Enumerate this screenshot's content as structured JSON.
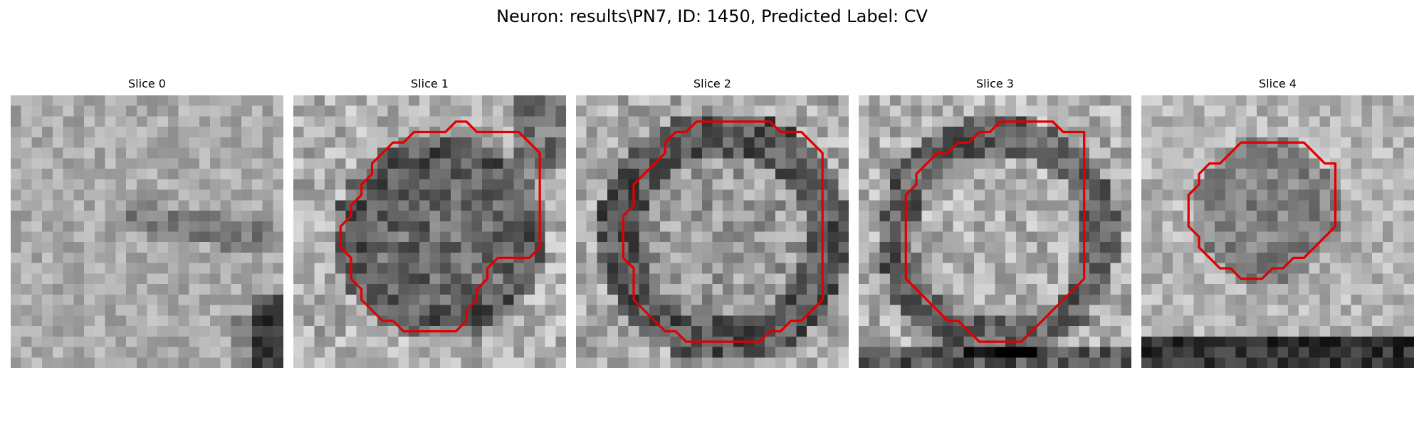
{
  "figure": {
    "title": "Neuron: results\\PN7, ID: 1450, Predicted Label: CV"
  },
  "panels": [
    {
      "title": "Slice 0",
      "contour": []
    },
    {
      "title": "Slice 1",
      "contour": [
        [
          13,
          3
        ],
        [
          14,
          3
        ],
        [
          15,
          2
        ],
        [
          16,
          2
        ],
        [
          17,
          3
        ],
        [
          18,
          3
        ],
        [
          19,
          3
        ],
        [
          20,
          3
        ],
        [
          21,
          3
        ],
        [
          22,
          4
        ],
        [
          23,
          5
        ],
        [
          23,
          6
        ],
        [
          23,
          7
        ],
        [
          23,
          8
        ],
        [
          23,
          9
        ],
        [
          23,
          10
        ],
        [
          23,
          11
        ],
        [
          23,
          12
        ],
        [
          23,
          13
        ],
        [
          23,
          14
        ],
        [
          22,
          15
        ],
        [
          21,
          15
        ],
        [
          20,
          15
        ],
        [
          19,
          15
        ],
        [
          18,
          16
        ],
        [
          18,
          17
        ],
        [
          17,
          18
        ],
        [
          17,
          19
        ],
        [
          16,
          20
        ],
        [
          16,
          21
        ],
        [
          15,
          22
        ],
        [
          14,
          22
        ],
        [
          13,
          22
        ],
        [
          12,
          22
        ],
        [
          11,
          22
        ],
        [
          10,
          22
        ],
        [
          9,
          21
        ],
        [
          8,
          21
        ],
        [
          7,
          20
        ],
        [
          6,
          19
        ],
        [
          6,
          18
        ],
        [
          5,
          17
        ],
        [
          5,
          16
        ],
        [
          5,
          15
        ],
        [
          4,
          14
        ],
        [
          4,
          13
        ],
        [
          4,
          12
        ],
        [
          5,
          11
        ],
        [
          5,
          10
        ],
        [
          6,
          9
        ],
        [
          6,
          8
        ],
        [
          7,
          7
        ],
        [
          7,
          6
        ],
        [
          8,
          5
        ],
        [
          9,
          4
        ],
        [
          10,
          4
        ],
        [
          11,
          3
        ],
        [
          12,
          3
        ]
      ]
    },
    {
      "title": "Slice 2",
      "contour": [
        [
          9,
          3
        ],
        [
          10,
          3
        ],
        [
          11,
          2
        ],
        [
          12,
          2
        ],
        [
          13,
          2
        ],
        [
          14,
          2
        ],
        [
          15,
          2
        ],
        [
          16,
          2
        ],
        [
          17,
          2
        ],
        [
          18,
          2
        ],
        [
          19,
          3
        ],
        [
          20,
          3
        ],
        [
          21,
          3
        ],
        [
          22,
          4
        ],
        [
          23,
          5
        ],
        [
          23,
          6
        ],
        [
          23,
          7
        ],
        [
          23,
          8
        ],
        [
          23,
          9
        ],
        [
          23,
          10
        ],
        [
          23,
          11
        ],
        [
          23,
          12
        ],
        [
          23,
          13
        ],
        [
          23,
          14
        ],
        [
          23,
          15
        ],
        [
          23,
          16
        ],
        [
          23,
          17
        ],
        [
          23,
          18
        ],
        [
          23,
          19
        ],
        [
          22,
          20
        ],
        [
          21,
          21
        ],
        [
          20,
          21
        ],
        [
          19,
          22
        ],
        [
          18,
          22
        ],
        [
          17,
          23
        ],
        [
          16,
          23
        ],
        [
          15,
          23
        ],
        [
          14,
          23
        ],
        [
          13,
          23
        ],
        [
          12,
          23
        ],
        [
          11,
          23
        ],
        [
          10,
          23
        ],
        [
          9,
          22
        ],
        [
          8,
          22
        ],
        [
          7,
          21
        ],
        [
          6,
          20
        ],
        [
          5,
          19
        ],
        [
          5,
          18
        ],
        [
          5,
          17
        ],
        [
          5,
          16
        ],
        [
          4,
          15
        ],
        [
          4,
          14
        ],
        [
          4,
          13
        ],
        [
          4,
          12
        ],
        [
          4,
          11
        ],
        [
          5,
          10
        ],
        [
          5,
          9
        ],
        [
          5,
          8
        ],
        [
          6,
          7
        ],
        [
          7,
          6
        ],
        [
          8,
          5
        ],
        [
          8,
          4
        ]
      ]
    },
    {
      "title": "Slice 3",
      "contour": [
        [
          10,
          4
        ],
        [
          11,
          3
        ],
        [
          12,
          3
        ],
        [
          13,
          2
        ],
        [
          14,
          2
        ],
        [
          15,
          2
        ],
        [
          16,
          2
        ],
        [
          17,
          2
        ],
        [
          18,
          2
        ],
        [
          19,
          3
        ],
        [
          20,
          3
        ],
        [
          21,
          3
        ],
        [
          21,
          4
        ],
        [
          21,
          5
        ],
        [
          21,
          6
        ],
        [
          21,
          7
        ],
        [
          21,
          8
        ],
        [
          21,
          9
        ],
        [
          21,
          10
        ],
        [
          21,
          11
        ],
        [
          21,
          12
        ],
        [
          21,
          13
        ],
        [
          21,
          14
        ],
        [
          21,
          15
        ],
        [
          21,
          16
        ],
        [
          21,
          17
        ],
        [
          20,
          18
        ],
        [
          19,
          19
        ],
        [
          18,
          20
        ],
        [
          17,
          21
        ],
        [
          16,
          22
        ],
        [
          15,
          23
        ],
        [
          14,
          23
        ],
        [
          13,
          23
        ],
        [
          12,
          23
        ],
        [
          11,
          23
        ],
        [
          10,
          22
        ],
        [
          9,
          21
        ],
        [
          8,
          21
        ],
        [
          7,
          20
        ],
        [
          6,
          19
        ],
        [
          5,
          18
        ],
        [
          4,
          17
        ],
        [
          4,
          16
        ],
        [
          4,
          15
        ],
        [
          4,
          14
        ],
        [
          4,
          13
        ],
        [
          4,
          12
        ],
        [
          4,
          11
        ],
        [
          4,
          10
        ],
        [
          4,
          9
        ],
        [
          5,
          8
        ],
        [
          5,
          7
        ],
        [
          6,
          6
        ],
        [
          7,
          5
        ],
        [
          8,
          5
        ],
        [
          9,
          4
        ]
      ]
    },
    {
      "title": "Slice 4",
      "contour": [
        [
          10,
          4
        ],
        [
          11,
          4
        ],
        [
          12,
          4
        ],
        [
          13,
          4
        ],
        [
          14,
          4
        ],
        [
          15,
          4
        ],
        [
          16,
          5
        ],
        [
          17,
          6
        ],
        [
          18,
          6
        ],
        [
          18,
          7
        ],
        [
          18,
          8
        ],
        [
          18,
          9
        ],
        [
          18,
          10
        ],
        [
          18,
          11
        ],
        [
          18,
          12
        ],
        [
          17,
          13
        ],
        [
          16,
          14
        ],
        [
          15,
          15
        ],
        [
          14,
          15
        ],
        [
          13,
          16
        ],
        [
          12,
          16
        ],
        [
          11,
          17
        ],
        [
          10,
          17
        ],
        [
          9,
          17
        ],
        [
          8,
          16
        ],
        [
          7,
          16
        ],
        [
          6,
          15
        ],
        [
          5,
          14
        ],
        [
          5,
          13
        ],
        [
          4,
          12
        ],
        [
          4,
          11
        ],
        [
          4,
          10
        ],
        [
          4,
          9
        ],
        [
          5,
          8
        ],
        [
          5,
          7
        ],
        [
          6,
          6
        ],
        [
          7,
          6
        ],
        [
          8,
          5
        ],
        [
          9,
          4
        ]
      ]
    }
  ]
}
